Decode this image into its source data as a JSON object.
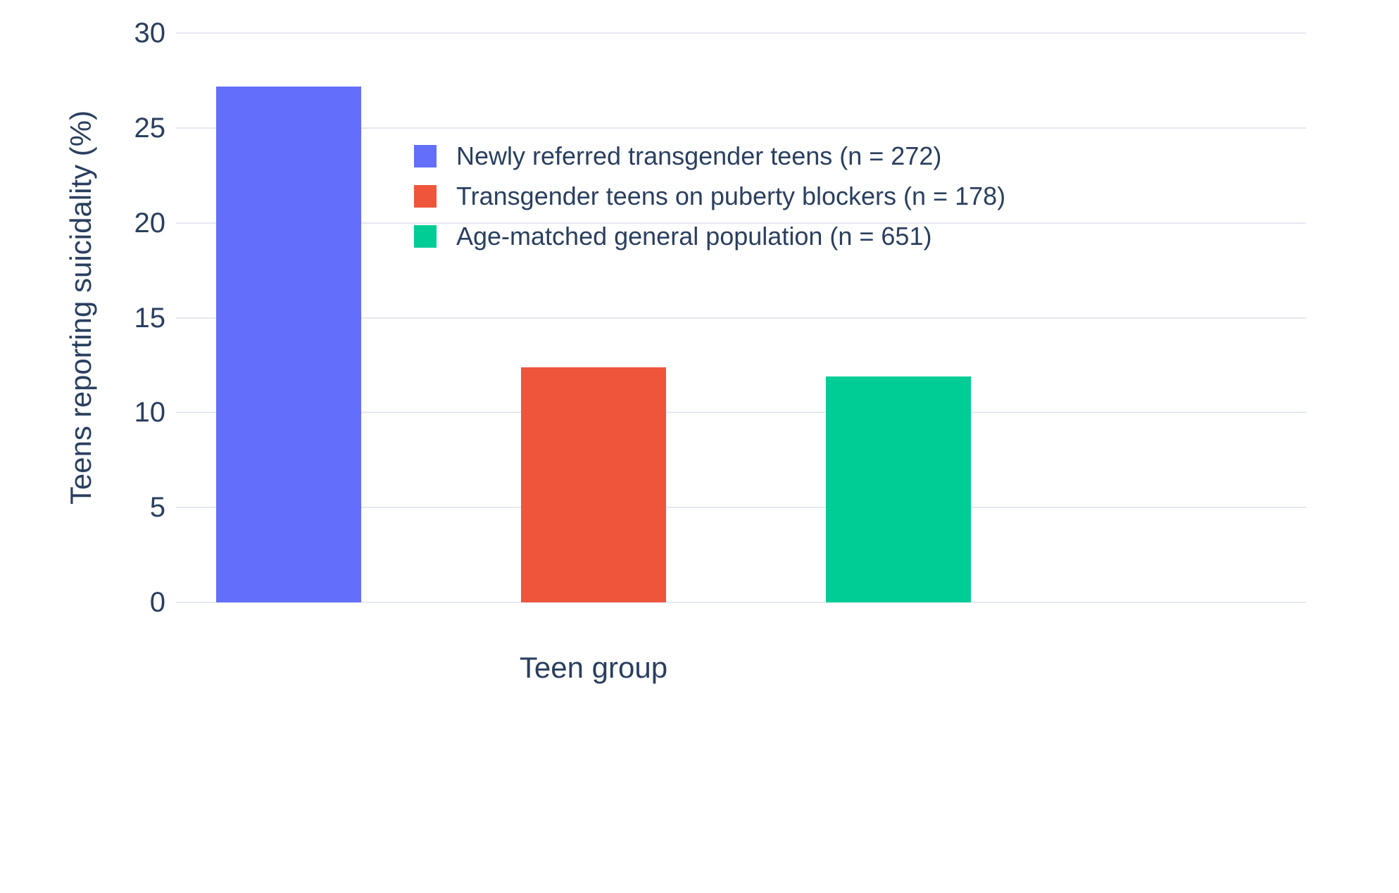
{
  "chart_data": {
    "type": "bar",
    "title": "",
    "xlabel": "Teen group",
    "ylabel": "Teens reporting suicidality (%)",
    "ylim": [
      0,
      30
    ],
    "yticks": [
      0,
      5,
      10,
      15,
      20,
      25,
      30
    ],
    "grid": true,
    "legend_position": "inside-top-center",
    "background_color": "#ffffff",
    "gridline_color": "#e5e9f0",
    "text_color": "#2a3f5f",
    "series": [
      {
        "name": "Newly referred transgender teens (n = 272)",
        "value": 27.2,
        "color": "#636EFA"
      },
      {
        "name": "Transgender teens on puberty blockers (n = 178)",
        "value": 12.4,
        "color": "#EF553B"
      },
      {
        "name": "Age-matched general population (n = 651)",
        "value": 11.9,
        "color": "#00CC96"
      }
    ]
  }
}
